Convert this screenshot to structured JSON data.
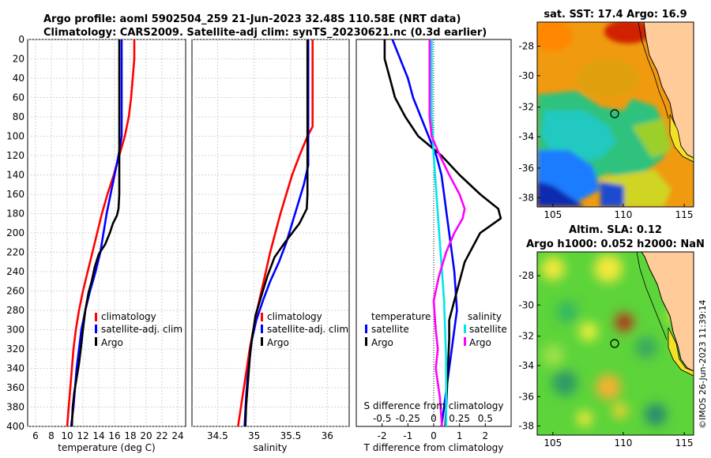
{
  "titles": {
    "line1": "Argo profile: aoml 5902504_259 21-Jun-2023 32.48S 110.58E (NRT data)",
    "line2": "Climatology: CARS2009. Satellite-adj clim: synTS_20230621.nc (0.3d earlier)"
  },
  "watermark": "©IMOS 26-Jun-2023 11:39:14",
  "colors": {
    "climatology": "#ff0000",
    "satellite": "#0000ff",
    "argo": "#000000",
    "satellite_s": "#00e5ee",
    "argo_s": "#ff00ff",
    "land": "#ffcc99"
  },
  "chart_data": [
    {
      "type": "line",
      "id": "temperature",
      "xlabel": "temperature (deg C)",
      "ylabel": "",
      "xlim": [
        5,
        25
      ],
      "ylim": [
        400,
        0
      ],
      "xticks": [
        6,
        8,
        10,
        12,
        14,
        16,
        18,
        20,
        22,
        24
      ],
      "yticks": [
        0,
        20,
        40,
        60,
        80,
        100,
        120,
        140,
        160,
        180,
        200,
        220,
        240,
        260,
        280,
        300,
        320,
        340,
        360,
        380,
        400
      ],
      "legend": [
        "climatology",
        "satellite-adj. clim",
        "Argo"
      ],
      "series": [
        {
          "name": "climatology",
          "color": "#ff0000",
          "points": [
            [
              18.5,
              0
            ],
            [
              18.5,
              20
            ],
            [
              18.3,
              40
            ],
            [
              18.1,
              60
            ],
            [
              17.8,
              80
            ],
            [
              17.3,
              100
            ],
            [
              16.6,
              120
            ],
            [
              15.9,
              140
            ],
            [
              15.1,
              160
            ],
            [
              14.4,
              180
            ],
            [
              13.8,
              200
            ],
            [
              13.2,
              220
            ],
            [
              12.6,
              240
            ],
            [
              12.0,
              260
            ],
            [
              11.5,
              280
            ],
            [
              11.1,
              300
            ],
            [
              10.8,
              320
            ],
            [
              10.6,
              340
            ],
            [
              10.4,
              360
            ],
            [
              10.2,
              380
            ],
            [
              10.0,
              400
            ]
          ]
        },
        {
          "name": "satellite-adj. clim",
          "color": "#0000ff",
          "points": [
            [
              16.9,
              0
            ],
            [
              16.9,
              20
            ],
            [
              16.9,
              40
            ],
            [
              16.9,
              60
            ],
            [
              16.9,
              80
            ],
            [
              16.9,
              100
            ],
            [
              16.5,
              120
            ],
            [
              16.0,
              140
            ],
            [
              15.5,
              160
            ],
            [
              15.0,
              180
            ],
            [
              14.6,
              200
            ],
            [
              14.2,
              220
            ],
            [
              13.6,
              240
            ],
            [
              12.9,
              260
            ],
            [
              12.3,
              280
            ],
            [
              11.8,
              300
            ],
            [
              11.5,
              320
            ],
            [
              11.2,
              340
            ],
            [
              11.0,
              360
            ],
            [
              10.8,
              380
            ],
            [
              10.5,
              400
            ]
          ]
        },
        {
          "name": "Argo",
          "color": "#000000",
          "points": [
            [
              16.6,
              0
            ],
            [
              16.6,
              20
            ],
            [
              16.6,
              40
            ],
            [
              16.6,
              60
            ],
            [
              16.6,
              80
            ],
            [
              16.6,
              100
            ],
            [
              16.6,
              120
            ],
            [
              16.6,
              140
            ],
            [
              16.6,
              160
            ],
            [
              16.5,
              175
            ],
            [
              16.3,
              182
            ],
            [
              15.8,
              190
            ],
            [
              15.4,
              200
            ],
            [
              14.8,
              212
            ],
            [
              14.0,
              222
            ],
            [
              13.5,
              235
            ],
            [
              13.1,
              250
            ],
            [
              12.7,
              262
            ],
            [
              12.3,
              280
            ],
            [
              12.0,
              300
            ],
            [
              11.8,
              315
            ],
            [
              11.5,
              335
            ],
            [
              11.2,
              350
            ],
            [
              10.9,
              365
            ],
            [
              10.7,
              380
            ],
            [
              10.6,
              400
            ]
          ]
        }
      ]
    },
    {
      "type": "line",
      "id": "salinity",
      "xlabel": "salinity",
      "ylabel": "",
      "xlim": [
        34.15,
        36.3
      ],
      "ylim": [
        400,
        0
      ],
      "xticks": [
        34.5,
        35,
        35.5,
        36
      ],
      "legend": [
        "climatology",
        "satellite-adj. clim",
        "Argo"
      ],
      "series": [
        {
          "name": "climatology",
          "color": "#ff0000",
          "points": [
            [
              35.8,
              0
            ],
            [
              35.8,
              40
            ],
            [
              35.8,
              70
            ],
            [
              35.8,
              90
            ],
            [
              35.73,
              100
            ],
            [
              35.62,
              120
            ],
            [
              35.52,
              140
            ],
            [
              35.44,
              160
            ],
            [
              35.36,
              180
            ],
            [
              35.29,
              200
            ],
            [
              35.22,
              220
            ],
            [
              35.16,
              240
            ],
            [
              35.1,
              260
            ],
            [
              35.04,
              280
            ],
            [
              34.99,
              300
            ],
            [
              34.94,
              320
            ],
            [
              34.9,
              340
            ],
            [
              34.86,
              360
            ],
            [
              34.82,
              380
            ],
            [
              34.78,
              400
            ]
          ]
        },
        {
          "name": "satellite-adj. clim",
          "color": "#0000ff",
          "points": [
            [
              35.74,
              0
            ],
            [
              35.74,
              40
            ],
            [
              35.74,
              100
            ],
            [
              35.74,
              130
            ],
            [
              35.68,
              150
            ],
            [
              35.6,
              170
            ],
            [
              35.52,
              190
            ],
            [
              35.44,
              210
            ],
            [
              35.34,
              230
            ],
            [
              35.22,
              250
            ],
            [
              35.12,
              270
            ],
            [
              35.03,
              290
            ],
            [
              34.97,
              310
            ],
            [
              34.94,
              330
            ],
            [
              34.91,
              350
            ],
            [
              34.89,
              370
            ],
            [
              34.87,
              400
            ]
          ]
        },
        {
          "name": "Argo",
          "color": "#000000",
          "points": [
            [
              35.73,
              0
            ],
            [
              35.73,
              40
            ],
            [
              35.73,
              80
            ],
            [
              35.73,
              120
            ],
            [
              35.73,
              160
            ],
            [
              35.72,
              175
            ],
            [
              35.62,
              190
            ],
            [
              35.52,
              200
            ],
            [
              35.42,
              210
            ],
            [
              35.28,
              225
            ],
            [
              35.18,
              245
            ],
            [
              35.1,
              265
            ],
            [
              35.02,
              285
            ],
            [
              34.99,
              300
            ],
            [
              34.95,
              320
            ],
            [
              34.93,
              340
            ],
            [
              34.91,
              360
            ],
            [
              34.89,
              380
            ],
            [
              34.88,
              400
            ]
          ]
        }
      ]
    },
    {
      "type": "line",
      "id": "difference",
      "xlabel": "T difference from climatology",
      "xlabel_top": "S difference from climatology",
      "xlim": [
        -3,
        3
      ],
      "ylim": [
        400,
        0
      ],
      "xticks": [
        -2,
        -1,
        0,
        1,
        2
      ],
      "xticks_s": [
        "-0.5",
        "-0.25",
        "0",
        "0.25",
        "0.5"
      ],
      "xticks_s_values": [
        -0.5,
        -0.25,
        0,
        0.25,
        0.5
      ],
      "legend_left_title": "temperature",
      "legend_right_title": "salinity",
      "legend_left": [
        "satellite",
        "Argo"
      ],
      "legend_right": [
        "satellite",
        "Argo"
      ],
      "series": [
        {
          "name": "T satellite",
          "color": "#0000ff",
          "points": [
            [
              -1.6,
              0
            ],
            [
              -1.3,
              20
            ],
            [
              -1.0,
              40
            ],
            [
              -0.8,
              60
            ],
            [
              -0.5,
              80
            ],
            [
              -0.2,
              100
            ],
            [
              0.1,
              120
            ],
            [
              0.3,
              140
            ],
            [
              0.4,
              160
            ],
            [
              0.5,
              180
            ],
            [
              0.6,
              200
            ],
            [
              0.7,
              220
            ],
            [
              0.8,
              240
            ],
            [
              0.85,
              260
            ],
            [
              0.9,
              280
            ],
            [
              0.8,
              300
            ],
            [
              0.7,
              320
            ],
            [
              0.6,
              340
            ],
            [
              0.5,
              360
            ],
            [
              0.4,
              380
            ],
            [
              0.3,
              400
            ]
          ]
        },
        {
          "name": "T Argo",
          "color": "#000000",
          "points": [
            [
              -1.9,
              0
            ],
            [
              -1.9,
              20
            ],
            [
              -1.7,
              40
            ],
            [
              -1.5,
              60
            ],
            [
              -1.1,
              80
            ],
            [
              -0.6,
              100
            ],
            [
              0.3,
              120
            ],
            [
              1.0,
              140
            ],
            [
              1.8,
              160
            ],
            [
              2.5,
              175
            ],
            [
              2.6,
              185
            ],
            [
              1.8,
              200
            ],
            [
              1.5,
              215
            ],
            [
              1.2,
              230
            ],
            [
              1.0,
              250
            ],
            [
              0.8,
              270
            ],
            [
              0.6,
              290
            ],
            [
              0.6,
              310
            ],
            [
              0.55,
              340
            ],
            [
              0.5,
              370
            ],
            [
              0.45,
              400
            ]
          ]
        },
        {
          "name": "S satellite",
          "color": "#00e5ee",
          "points": [
            [
              -0.02,
              0
            ],
            [
              -0.02,
              40
            ],
            [
              -0.02,
              80
            ],
            [
              -0.01,
              100
            ],
            [
              0.0,
              120
            ],
            [
              0.02,
              150
            ],
            [
              0.04,
              180
            ],
            [
              0.06,
              210
            ],
            [
              0.08,
              240
            ],
            [
              0.1,
              270
            ],
            [
              0.11,
              300
            ],
            [
              0.12,
              330
            ],
            [
              0.12,
              360
            ],
            [
              0.12,
              400
            ]
          ]
        },
        {
          "name": "S Argo",
          "color": "#ff00ff",
          "points": [
            [
              -0.04,
              0
            ],
            [
              -0.04,
              40
            ],
            [
              -0.04,
              80
            ],
            [
              -0.02,
              100
            ],
            [
              0.06,
              120
            ],
            [
              0.15,
              140
            ],
            [
              0.25,
              160
            ],
            [
              0.3,
              175
            ],
            [
              0.28,
              185
            ],
            [
              0.2,
              200
            ],
            [
              0.12,
              220
            ],
            [
              0.05,
              245
            ],
            [
              0.0,
              270
            ],
            [
              0.02,
              300
            ],
            [
              0.04,
              320
            ],
            [
              0.02,
              340
            ],
            [
              0.06,
              370
            ],
            [
              0.08,
              400
            ]
          ]
        }
      ]
    }
  ],
  "maps": [
    {
      "id": "sst",
      "title": "sat. SST: 17.4 Argo: 16.9",
      "xticks": [
        "105",
        "110",
        "115"
      ],
      "yticks": [
        "-28",
        "-30",
        "-32",
        "-34",
        "-36",
        "-38"
      ]
    },
    {
      "id": "sla",
      "title_line1": "Altim. SLA: 0.12",
      "title_line2": "Argo h1000: 0.052 h2000: NaN",
      "xticks": [
        "105",
        "110",
        "115"
      ],
      "yticks": [
        "-28",
        "-30",
        "-32",
        "-34",
        "-36",
        "-38"
      ]
    }
  ]
}
